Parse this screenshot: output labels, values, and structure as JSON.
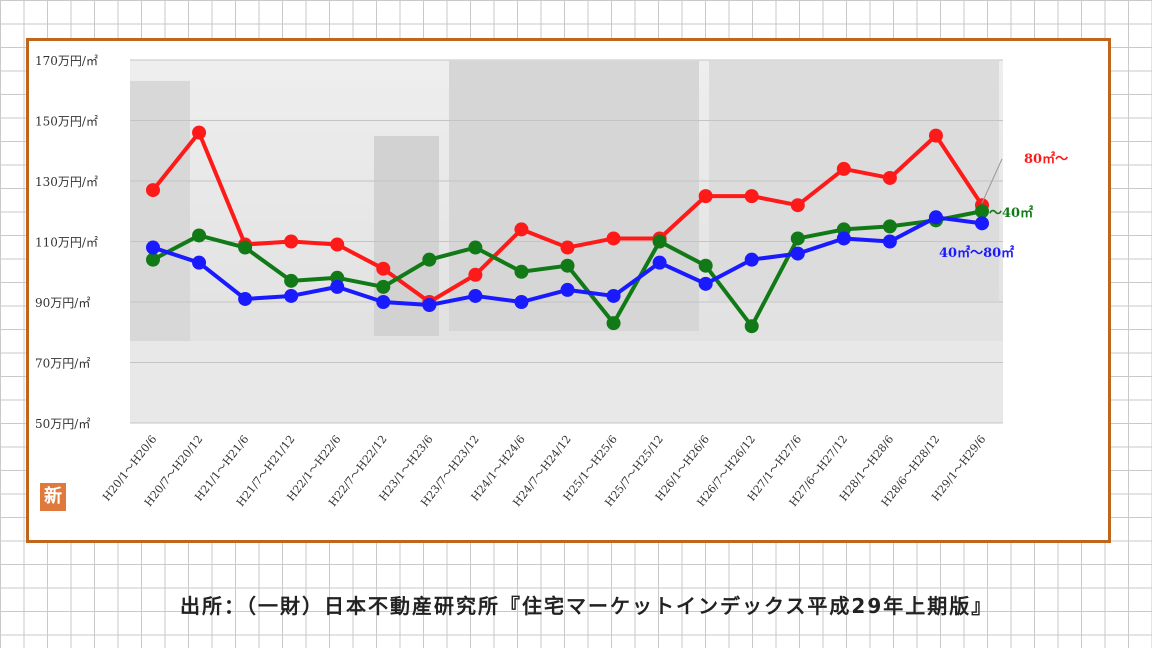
{
  "source_text": "出所：（一財）日本不動産研究所『住宅マーケットインデックス平成29年上期版』",
  "badge_text": "新",
  "chart_data": {
    "type": "line",
    "yaxis_ticks": [
      "50万円/㎡",
      "70万円/㎡",
      "90万円/㎡",
      "110万円/㎡",
      "130万円/㎡",
      "150万円/㎡",
      "170万円/㎡"
    ],
    "ylim": [
      50,
      170
    ],
    "grid": true,
    "categories": [
      "H20/1～H20/6",
      "H20/7～H20/12",
      "H21/1～H21/6",
      "H21/7～H21/12",
      "H22/1～H22/6",
      "H22/7～H22/12",
      "H23/1～H23/6",
      "H23/7～H23/12",
      "H24/1～H24/6",
      "H24/7～H24/12",
      "H25/1～H25/6",
      "H25/7～H25/12",
      "H26/1～H26/6",
      "H26/7～H26/12",
      "H27/1～H27/6",
      "H27/6～H27/12",
      "H28/1～H28/6",
      "H28/6～H28/12",
      "H29/1～H29/6"
    ],
    "series": [
      {
        "name": "80㎡～",
        "color": "#ff1a1a",
        "values": [
          127,
          146,
          109,
          110,
          109,
          101,
          90,
          99,
          114,
          108,
          111,
          111,
          125,
          125,
          122,
          134,
          131,
          145,
          122
        ]
      },
      {
        "name": "～40㎡",
        "color": "#117a17",
        "values": [
          104,
          112,
          108,
          97,
          98,
          95,
          104,
          108,
          100,
          102,
          83,
          110,
          102,
          82,
          111,
          114,
          115,
          117,
          120
        ]
      },
      {
        "name": "40㎡～80㎡",
        "color": "#1a1aff",
        "values": [
          108,
          103,
          91,
          92,
          95,
          90,
          89,
          92,
          90,
          94,
          92,
          103,
          96,
          104,
          106,
          111,
          110,
          118,
          116
        ]
      }
    ]
  }
}
